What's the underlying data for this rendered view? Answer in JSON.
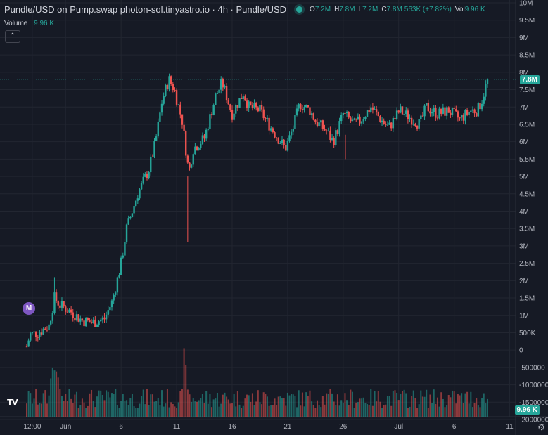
{
  "legend": {
    "title": "Pundle/USD on Pump.swap photon-sol.tinyastro.io · 4h · Pundle/USD",
    "ohlc": [
      {
        "k": "O",
        "v": "7.2M"
      },
      {
        "k": "H",
        "v": "7.8M"
      },
      {
        "k": "L",
        "v": "7.2M"
      },
      {
        "k": "C",
        "v": "7.8M"
      },
      {
        "k": "",
        "v": "563K (+7.82%)"
      },
      {
        "k": "Vol",
        "v": "9.96 K"
      }
    ]
  },
  "volume_legend": {
    "label": "Volume",
    "value": "9.96 K"
  },
  "collapse_label": "⌃",
  "price_badge": "7.8M",
  "volume_badge": "9.96 K",
  "marker_label": "M",
  "logo_text": "TV",
  "settings_icon": "gear-icon",
  "colors": {
    "up": "#26a69a",
    "down": "#ef5350",
    "bg": "#161a25",
    "grid": "#222631",
    "text": "#d1d4dc"
  },
  "chart_data": {
    "type": "candlestick",
    "y_ticks": [
      "10M",
      "9.5M",
      "9M",
      "8.5M",
      "8M",
      "7.5M",
      "7M",
      "6.5M",
      "6M",
      "5.5M",
      "5M",
      "4.5M",
      "4M",
      "3.5M",
      "3M",
      "2.5M",
      "2M",
      "1.5M",
      "1M",
      "500K",
      "0",
      "-500000",
      "-1000000",
      "-1500000",
      "-2000000"
    ],
    "y_tick_values": [
      10000000,
      9500000,
      9000000,
      8500000,
      8000000,
      7500000,
      7000000,
      6500000,
      6000000,
      5500000,
      5000000,
      4500000,
      4000000,
      3500000,
      3000000,
      2500000,
      2000000,
      1500000,
      1000000,
      500000,
      0,
      -500000,
      -1000000,
      -1500000,
      -2000000
    ],
    "ylim": [
      -2000000,
      10000000
    ],
    "x_ticks": [
      "12:00",
      "Jun",
      "6",
      "11",
      "16",
      "21",
      "26",
      "Jul",
      "6",
      "11"
    ],
    "x_tick_days": [
      0.5,
      3.5,
      8.5,
      13.5,
      18.5,
      23.5,
      28.5,
      33.5,
      38.5,
      43.5
    ],
    "last_price": 7800000,
    "price_path": [
      [
        0,
        0.1
      ],
      [
        0.3,
        0.45
      ],
      [
        1,
        0.5
      ],
      [
        2,
        0.7
      ],
      [
        2.5,
        1.5
      ],
      [
        3,
        1.3
      ],
      [
        4,
        1.1
      ],
      [
        5,
        0.85
      ],
      [
        6,
        0.8
      ],
      [
        7,
        0.9
      ],
      [
        7.7,
        1.4
      ],
      [
        8.5,
        2.5
      ],
      [
        9,
        3.5
      ],
      [
        10,
        4.5
      ],
      [
        11,
        5.2
      ],
      [
        11.6,
        6
      ],
      [
        12.2,
        7.2
      ],
      [
        12.8,
        7.8
      ],
      [
        13.3,
        7.5
      ],
      [
        14,
        6.6
      ],
      [
        14.6,
        5.1
      ],
      [
        15,
        5.8
      ],
      [
        16,
        6.1
      ],
      [
        17,
        7.3
      ],
      [
        17.6,
        7.7
      ],
      [
        18.5,
        6.8
      ],
      [
        19.5,
        7.4
      ],
      [
        20,
        7
      ],
      [
        21,
        6.9
      ],
      [
        22,
        6.4
      ],
      [
        23.3,
        5.8
      ],
      [
        24,
        6.4
      ],
      [
        24.6,
        7.1
      ],
      [
        25.5,
        6.9
      ],
      [
        26,
        6.6
      ],
      [
        27,
        6.3
      ],
      [
        27.6,
        6
      ],
      [
        28.5,
        6.8
      ],
      [
        29.5,
        6.5
      ],
      [
        30,
        6.6
      ],
      [
        31,
        7
      ],
      [
        32,
        6.6
      ],
      [
        32.6,
        6.4
      ],
      [
        33.6,
        6.9
      ],
      [
        34.5,
        6.7
      ],
      [
        35.4,
        6.5
      ],
      [
        36,
        7
      ],
      [
        37,
        6.8
      ],
      [
        38,
        6.9
      ],
      [
        39,
        6.65
      ],
      [
        40,
        6.9
      ],
      [
        40.6,
        6.9
      ],
      [
        41,
        7.2
      ],
      [
        41.5,
        7.8
      ]
    ]
  }
}
